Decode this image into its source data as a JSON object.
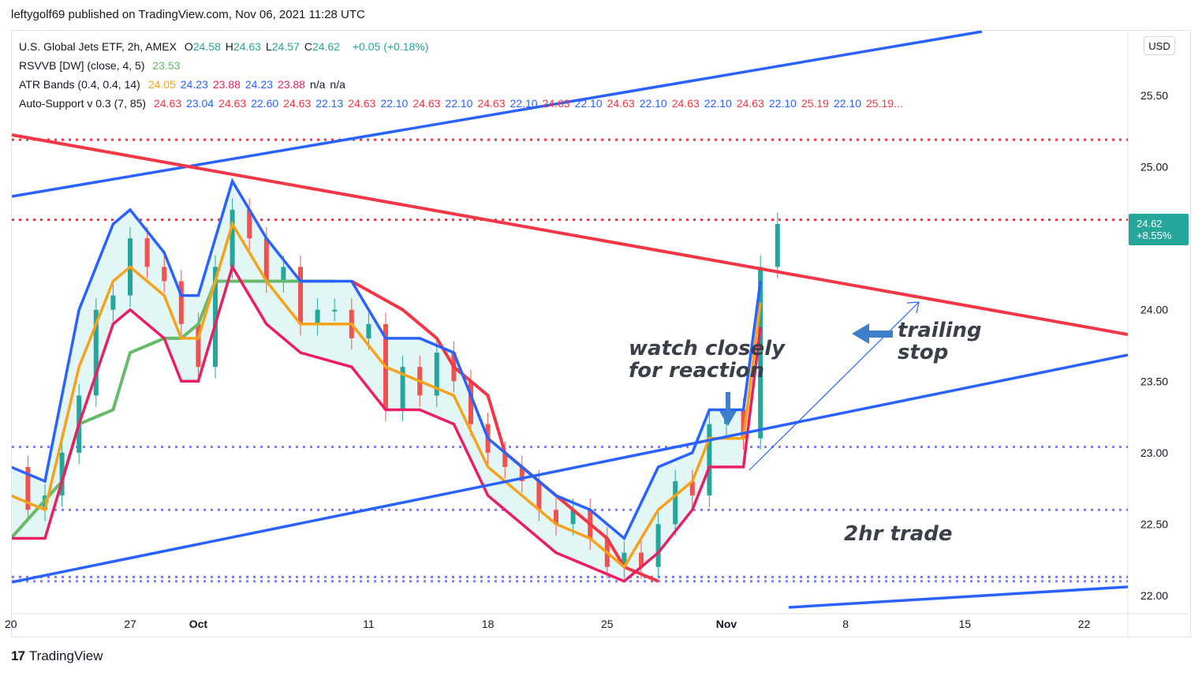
{
  "header": {
    "publish_line": "leftygolf69 published on TradingView.com, Nov 06, 2021 11:28 UTC"
  },
  "legend": {
    "symbol": "U.S. Global Jets ETF, 2h, AMEX",
    "ohlc": [
      {
        "label": "O",
        "value": "24.58"
      },
      {
        "label": "H",
        "value": "24.63"
      },
      {
        "label": "L",
        "value": "24.57"
      },
      {
        "label": "C",
        "value": "24.62"
      }
    ],
    "change": "+0.05 (+0.18%)",
    "rsvvb": {
      "label": "RSVVB [DW] (close, 4, 5)",
      "value": "23.53"
    },
    "atr": {
      "label": "ATR Bands (0.4, 0.4, 14)",
      "values": [
        {
          "v": "24.05",
          "color": "#f7a21b"
        },
        {
          "v": "24.23",
          "color": "#2962ff"
        },
        {
          "v": "23.88",
          "color": "#e91e63"
        },
        {
          "v": "24.23",
          "color": "#2962ff"
        },
        {
          "v": "23.88",
          "color": "#e91e63"
        },
        {
          "v": "n/a",
          "color": "#131722"
        },
        {
          "v": "n/a",
          "color": "#131722"
        }
      ]
    },
    "auto_support": {
      "label": "Auto-Support v 0.3 (7, 85)",
      "values": [
        {
          "v": "24.63",
          "color": "#f23645"
        },
        {
          "v": "23.04",
          "color": "#2962ff"
        },
        {
          "v": "24.63",
          "color": "#f23645"
        },
        {
          "v": "22.60",
          "color": "#2962ff"
        },
        {
          "v": "24.63",
          "color": "#f23645"
        },
        {
          "v": "22.13",
          "color": "#2962ff"
        },
        {
          "v": "24.63",
          "color": "#f23645"
        },
        {
          "v": "22.10",
          "color": "#2962ff"
        },
        {
          "v": "24.63",
          "color": "#f23645"
        },
        {
          "v": "22.10",
          "color": "#2962ff"
        },
        {
          "v": "24.63",
          "color": "#f23645"
        },
        {
          "v": "22.10",
          "color": "#2962ff"
        },
        {
          "v": "24.63",
          "color": "#f23645"
        },
        {
          "v": "22.10",
          "color": "#2962ff"
        },
        {
          "v": "24.63",
          "color": "#f23645"
        },
        {
          "v": "22.10",
          "color": "#2962ff"
        },
        {
          "v": "24.63",
          "color": "#f23645"
        },
        {
          "v": "22.10",
          "color": "#2962ff"
        },
        {
          "v": "24.63",
          "color": "#f23645"
        },
        {
          "v": "22.10",
          "color": "#2962ff"
        },
        {
          "v": "25.19",
          "color": "#f23645"
        },
        {
          "v": "22.10",
          "color": "#2962ff"
        },
        {
          "v": "25.19...",
          "color": "#f23645"
        }
      ]
    }
  },
  "currency": "USD",
  "last_price": {
    "price": "24.62",
    "change_pct": "+8.55%"
  },
  "annotations": {
    "watch": [
      "watch closely",
      "for reaction"
    ],
    "trailing": [
      "trailing",
      "stop"
    ],
    "trade": "2hr trade"
  },
  "footer": {
    "brand": "TradingView"
  },
  "colors": {
    "up": "#26a69a",
    "down": "#ef5350",
    "blue": "#2962ff",
    "red": "#f23645",
    "orange": "#f7a21b",
    "green": "#66bb6a",
    "pink": "#e91e63",
    "dotted_blue": "#7b7bff"
  },
  "chart_data": {
    "type": "candlestick",
    "ylim": [
      21.9,
      25.8
    ],
    "y_ticks": [
      "22.00",
      "22.50",
      "23.00",
      "23.50",
      "24.00",
      "24.50",
      "25.00",
      "25.50"
    ],
    "x_ticks": [
      "20",
      "27",
      "Oct",
      "11",
      "18",
      "25",
      "Nov",
      "8",
      "15",
      "22"
    ],
    "x_tick_days": [
      -7,
      0,
      4,
      14,
      21,
      28,
      35,
      42,
      49,
      56
    ],
    "price_series": [
      [
        -7,
        22.9
      ],
      [
        -6,
        22.6
      ],
      [
        -5,
        22.7
      ],
      [
        -4,
        23.0
      ],
      [
        -3,
        23.4
      ],
      [
        -2,
        24.0
      ],
      [
        -1,
        24.1
      ],
      [
        0,
        24.5
      ],
      [
        1,
        24.3
      ],
      [
        2,
        24.2
      ],
      [
        3,
        23.9
      ],
      [
        4,
        23.6
      ],
      [
        5,
        24.3
      ],
      [
        6,
        24.7
      ],
      [
        7,
        24.5
      ],
      [
        8,
        24.2
      ],
      [
        9,
        24.3
      ],
      [
        10,
        23.9
      ],
      [
        11,
        24.0
      ],
      [
        12,
        24.0
      ],
      [
        13,
        23.8
      ],
      [
        14,
        23.9
      ],
      [
        15,
        23.3
      ],
      [
        16,
        23.6
      ],
      [
        17,
        23.4
      ],
      [
        18,
        23.7
      ],
      [
        19,
        23.5
      ],
      [
        20,
        23.2
      ],
      [
        21,
        23.0
      ],
      [
        22,
        22.9
      ],
      [
        23,
        22.8
      ],
      [
        24,
        22.6
      ],
      [
        25,
        22.5
      ],
      [
        26,
        22.6
      ],
      [
        27,
        22.4
      ],
      [
        28,
        22.2
      ],
      [
        29,
        22.3
      ],
      [
        30,
        22.2
      ],
      [
        31,
        22.5
      ],
      [
        32,
        22.8
      ],
      [
        33,
        22.7
      ],
      [
        34,
        23.2
      ],
      [
        35,
        23.3
      ],
      [
        36,
        23.1
      ],
      [
        37,
        24.3
      ],
      [
        38,
        24.6
      ]
    ],
    "atr_blue_upper": [
      [
        -7,
        22.9
      ],
      [
        -5,
        22.8
      ],
      [
        -3,
        24.0
      ],
      [
        -1,
        24.6
      ],
      [
        0,
        24.7
      ],
      [
        2,
        24.4
      ],
      [
        3,
        24.1
      ],
      [
        4,
        24.1
      ],
      [
        6,
        24.9
      ],
      [
        8,
        24.5
      ],
      [
        10,
        24.2
      ],
      [
        13,
        24.2
      ],
      [
        15,
        23.8
      ],
      [
        17,
        23.8
      ],
      [
        19,
        23.7
      ],
      [
        21,
        23.1
      ],
      [
        23,
        22.9
      ],
      [
        25,
        22.7
      ],
      [
        27,
        22.6
      ],
      [
        29,
        22.4
      ],
      [
        31,
        22.9
      ],
      [
        33,
        23.0
      ],
      [
        34,
        23.3
      ],
      [
        36,
        23.3
      ],
      [
        37,
        24.2
      ]
    ],
    "atr_orange_mid": [
      [
        -7,
        22.7
      ],
      [
        -5,
        22.6
      ],
      [
        -3,
        23.6
      ],
      [
        -1,
        24.2
      ],
      [
        0,
        24.3
      ],
      [
        2,
        24.1
      ],
      [
        3,
        23.8
      ],
      [
        4,
        23.8
      ],
      [
        6,
        24.6
      ],
      [
        8,
        24.2
      ],
      [
        10,
        23.9
      ],
      [
        13,
        23.9
      ],
      [
        15,
        23.6
      ],
      [
        17,
        23.5
      ],
      [
        19,
        23.4
      ],
      [
        21,
        22.9
      ],
      [
        23,
        22.7
      ],
      [
        25,
        22.5
      ],
      [
        27,
        22.4
      ],
      [
        29,
        22.2
      ],
      [
        31,
        22.6
      ],
      [
        33,
        22.8
      ],
      [
        34,
        23.1
      ],
      [
        36,
        23.1
      ],
      [
        37,
        24.05
      ]
    ],
    "atr_pink_lower": [
      [
        -7,
        22.4
      ],
      [
        -5,
        22.4
      ],
      [
        -3,
        23.2
      ],
      [
        -1,
        23.9
      ],
      [
        0,
        24.0
      ],
      [
        2,
        23.8
      ],
      [
        3,
        23.5
      ],
      [
        4,
        23.5
      ],
      [
        6,
        24.3
      ],
      [
        8,
        23.9
      ],
      [
        10,
        23.7
      ],
      [
        13,
        23.6
      ],
      [
        15,
        23.3
      ],
      [
        17,
        23.3
      ],
      [
        19,
        23.2
      ],
      [
        21,
        22.7
      ],
      [
        23,
        22.5
      ],
      [
        25,
        22.3
      ],
      [
        27,
        22.2
      ],
      [
        29,
        22.1
      ],
      [
        31,
        22.3
      ],
      [
        33,
        22.6
      ],
      [
        34,
        22.9
      ],
      [
        36,
        22.9
      ],
      [
        37,
        23.88
      ]
    ],
    "rsvvb_green": [
      [
        -7,
        22.4
      ],
      [
        -4,
        22.8
      ],
      [
        -3,
        23.2
      ],
      [
        -1,
        23.3
      ],
      [
        0,
        23.7
      ],
      [
        2,
        23.8
      ],
      [
        3,
        23.8
      ],
      [
        4,
        23.9
      ],
      [
        5,
        24.2
      ],
      [
        7,
        24.2
      ],
      [
        9,
        24.2
      ],
      [
        12,
        24.2
      ]
    ],
    "red_step": [
      [
        13,
        24.2
      ],
      [
        16,
        24.0
      ],
      [
        18,
        23.8
      ],
      [
        19,
        23.6
      ],
      [
        21,
        23.4
      ],
      [
        22,
        23.0
      ],
      [
        24,
        22.8
      ],
      [
        26,
        22.6
      ],
      [
        27,
        22.5
      ],
      [
        28,
        22.4
      ],
      [
        29,
        22.2
      ],
      [
        31,
        22.1
      ]
    ],
    "dotted_levels": [
      {
        "y": 25.19,
        "color": "red"
      },
      {
        "y": 24.63,
        "color": "red"
      },
      {
        "y": 23.04,
        "color": "blue"
      },
      {
        "y": 22.6,
        "color": "blue"
      },
      {
        "y": 22.13,
        "color": "blue"
      },
      {
        "y": 22.1,
        "color": "blue"
      }
    ]
  }
}
